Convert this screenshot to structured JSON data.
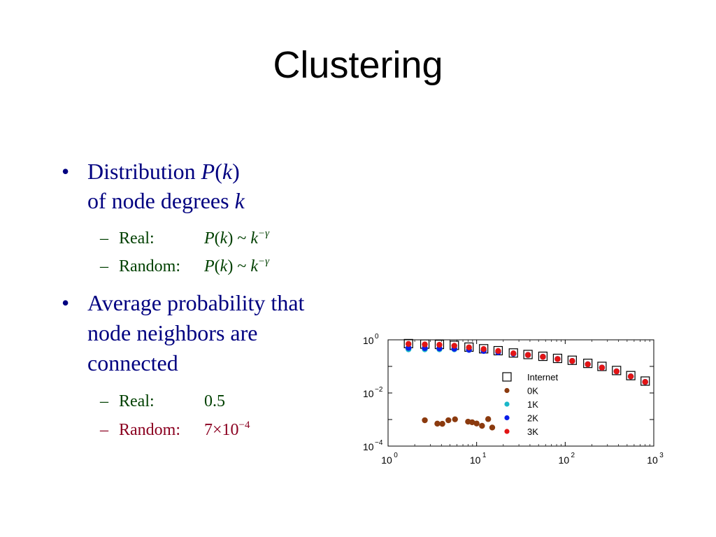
{
  "slide": {
    "title": "Clustering",
    "bullets": [
      {
        "line1_prefix": "Distribution ",
        "line1_var": "P",
        "line1_open": "(",
        "line1_arg": "k",
        "line1_close": ")",
        "line2_text": "of node degrees ",
        "line2_var": "k",
        "sub": [
          {
            "label": "Real:",
            "p": "P",
            "k_arg": "k",
            "mid": ") ~ ",
            "k": "k",
            "exp": "−γ"
          },
          {
            "label": "Random:",
            "p": "P",
            "k_arg": "k",
            "mid": ") ~ ",
            "k": "k",
            "exp": "−γ"
          }
        ]
      },
      {
        "lines": [
          "Average probability that",
          "node neighbors are",
          "connected"
        ],
        "sub": [
          {
            "label": "Real:",
            "value": "0.5"
          },
          {
            "label": "Random:",
            "value_base": "7×10",
            "value_exp": "−4"
          }
        ]
      }
    ]
  },
  "chart_data": {
    "type": "scatter",
    "x_scale": "log",
    "y_scale": "log",
    "xlim": [
      1,
      1000
    ],
    "ylim": [
      0.0001,
      1
    ],
    "grid": false,
    "legend_position": "right-middle",
    "x_ticks": [
      {
        "base": "10",
        "exp": "0",
        "value": 1
      },
      {
        "base": "10",
        "exp": "1",
        "value": 10
      },
      {
        "base": "10",
        "exp": "2",
        "value": 100
      },
      {
        "base": "10",
        "exp": "3",
        "value": 1000
      }
    ],
    "y_ticks": [
      {
        "base": "10",
        "exp": "0",
        "value": 1
      },
      {
        "base": "10",
        "exp": "−2",
        "value": 0.01
      },
      {
        "base": "10",
        "exp": "−4",
        "value": 0.0001
      }
    ],
    "series": [
      {
        "name": "Internet",
        "marker": "square-open",
        "color": "#000000",
        "points": [
          [
            1.7,
            0.72
          ],
          [
            2.6,
            0.69
          ],
          [
            3.8,
            0.67
          ],
          [
            5.6,
            0.62
          ],
          [
            8.2,
            0.53
          ],
          [
            12,
            0.46
          ],
          [
            17.5,
            0.39
          ],
          [
            26,
            0.32
          ],
          [
            38,
            0.28
          ],
          [
            56,
            0.24
          ],
          [
            82,
            0.2
          ],
          [
            120,
            0.17
          ],
          [
            180,
            0.13
          ],
          [
            260,
            0.1
          ],
          [
            380,
            0.07
          ],
          [
            550,
            0.045
          ],
          [
            800,
            0.028
          ]
        ]
      },
      {
        "name": "0K",
        "marker": "dot",
        "color": "#8b3a0e",
        "points": [
          [
            2.6,
            0.00094
          ],
          [
            3.6,
            0.0007
          ],
          [
            4.1,
            0.00069
          ],
          [
            4.8,
            0.00094
          ],
          [
            5.7,
            0.00102
          ],
          [
            8,
            0.00083
          ],
          [
            8.9,
            0.00079
          ],
          [
            10,
            0.00071
          ],
          [
            11.5,
            0.00058
          ],
          [
            13.5,
            0.00104
          ],
          [
            15,
            0.0005
          ]
        ]
      },
      {
        "name": "1K",
        "marker": "dot",
        "color": "#1ab7c9",
        "points": [
          [
            1.7,
            0.44
          ],
          [
            2.6,
            0.44
          ],
          [
            3.8,
            0.44
          ],
          [
            5.6,
            0.44
          ],
          [
            8.2,
            0.42
          ],
          [
            12,
            0.4
          ],
          [
            17.5,
            0.36
          ],
          [
            26,
            0.3
          ],
          [
            38,
            0.27
          ],
          [
            56,
            0.23
          ],
          [
            82,
            0.19
          ],
          [
            120,
            0.16
          ],
          [
            180,
            0.12
          ],
          [
            260,
            0.09
          ],
          [
            380,
            0.065
          ],
          [
            550,
            0.042
          ],
          [
            800,
            0.026
          ]
        ]
      },
      {
        "name": "2K",
        "marker": "dot",
        "color": "#0a1ee8",
        "points": [
          [
            1.7,
            0.5
          ],
          [
            2.6,
            0.49
          ],
          [
            3.8,
            0.48
          ],
          [
            5.6,
            0.46
          ],
          [
            8.2,
            0.42
          ],
          [
            12,
            0.38
          ],
          [
            17.5,
            0.34
          ],
          [
            26,
            0.3
          ],
          [
            38,
            0.27
          ],
          [
            56,
            0.23
          ],
          [
            82,
            0.19
          ],
          [
            120,
            0.16
          ],
          [
            180,
            0.12
          ],
          [
            260,
            0.09
          ],
          [
            380,
            0.065
          ],
          [
            550,
            0.042
          ],
          [
            800,
            0.026
          ]
        ]
      },
      {
        "name": "3K",
        "marker": "dot",
        "color": "#e21414",
        "points": [
          [
            1.7,
            0.7
          ],
          [
            2.6,
            0.67
          ],
          [
            3.8,
            0.65
          ],
          [
            5.6,
            0.6
          ],
          [
            8.2,
            0.52
          ],
          [
            12,
            0.45
          ],
          [
            17.5,
            0.38
          ],
          [
            26,
            0.31
          ],
          [
            38,
            0.27
          ],
          [
            56,
            0.23
          ],
          [
            82,
            0.19
          ],
          [
            120,
            0.16
          ],
          [
            180,
            0.12
          ],
          [
            260,
            0.09
          ],
          [
            380,
            0.065
          ],
          [
            550,
            0.042
          ],
          [
            800,
            0.026
          ]
        ]
      }
    ]
  }
}
